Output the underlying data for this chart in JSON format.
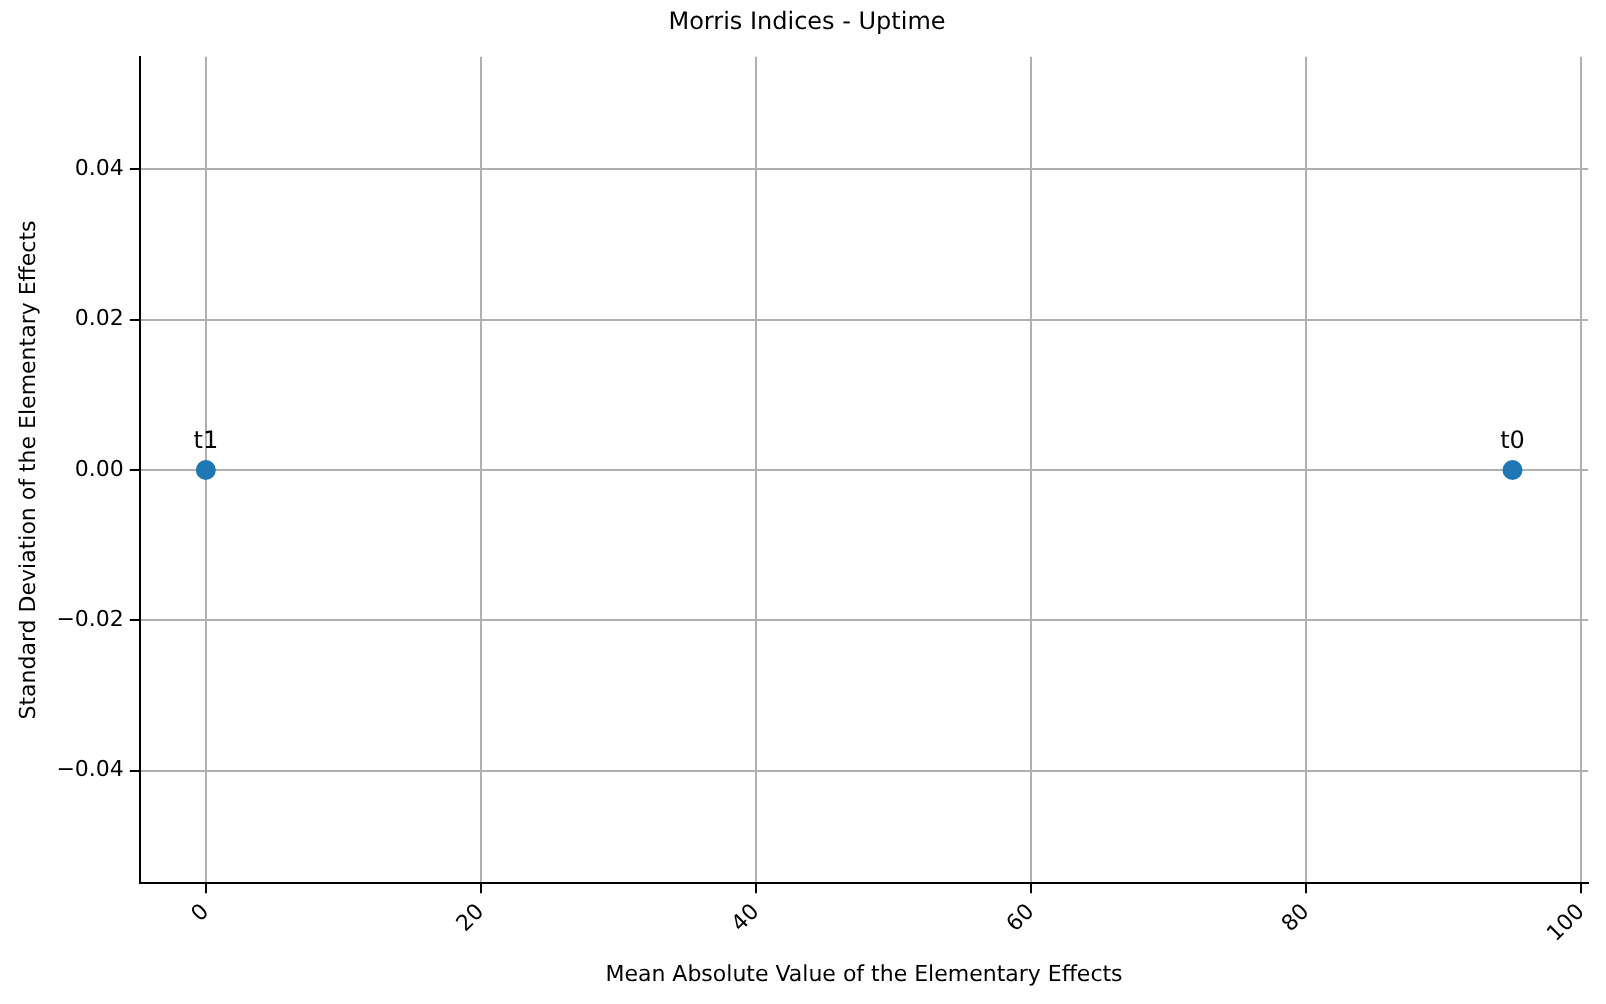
{
  "chart_data": {
    "type": "scatter",
    "title": "Morris Indices - Uptime",
    "xlabel": "Mean Absolute Value of the Elementary Effects",
    "ylabel": "Standard Deviation of the Elementary Effects",
    "x": [
      95,
      0
    ],
    "values": [
      0,
      0
    ],
    "color": "#1f77b4",
    "marker": "circle",
    "xlim": [
      -4.8,
      100.5
    ],
    "xticks": [
      0,
      20,
      40,
      60,
      80,
      100
    ],
    "ylim": [
      -0.055,
      0.055
    ],
    "yticks": [
      {
        "value": -0.04,
        "label": "−0.04"
      },
      {
        "value": -0.02,
        "label": "−0.02"
      },
      {
        "value": 0,
        "label": "0.00"
      },
      {
        "value": 0.02,
        "label": "0.02"
      },
      {
        "value": 0.04,
        "label": "0.04"
      }
    ],
    "grid": true,
    "legend": false,
    "annotations": [
      {
        "text": "t0",
        "x": 95,
        "y": 0
      },
      {
        "text": "t1",
        "x": 0,
        "y": 0
      }
    ]
  }
}
